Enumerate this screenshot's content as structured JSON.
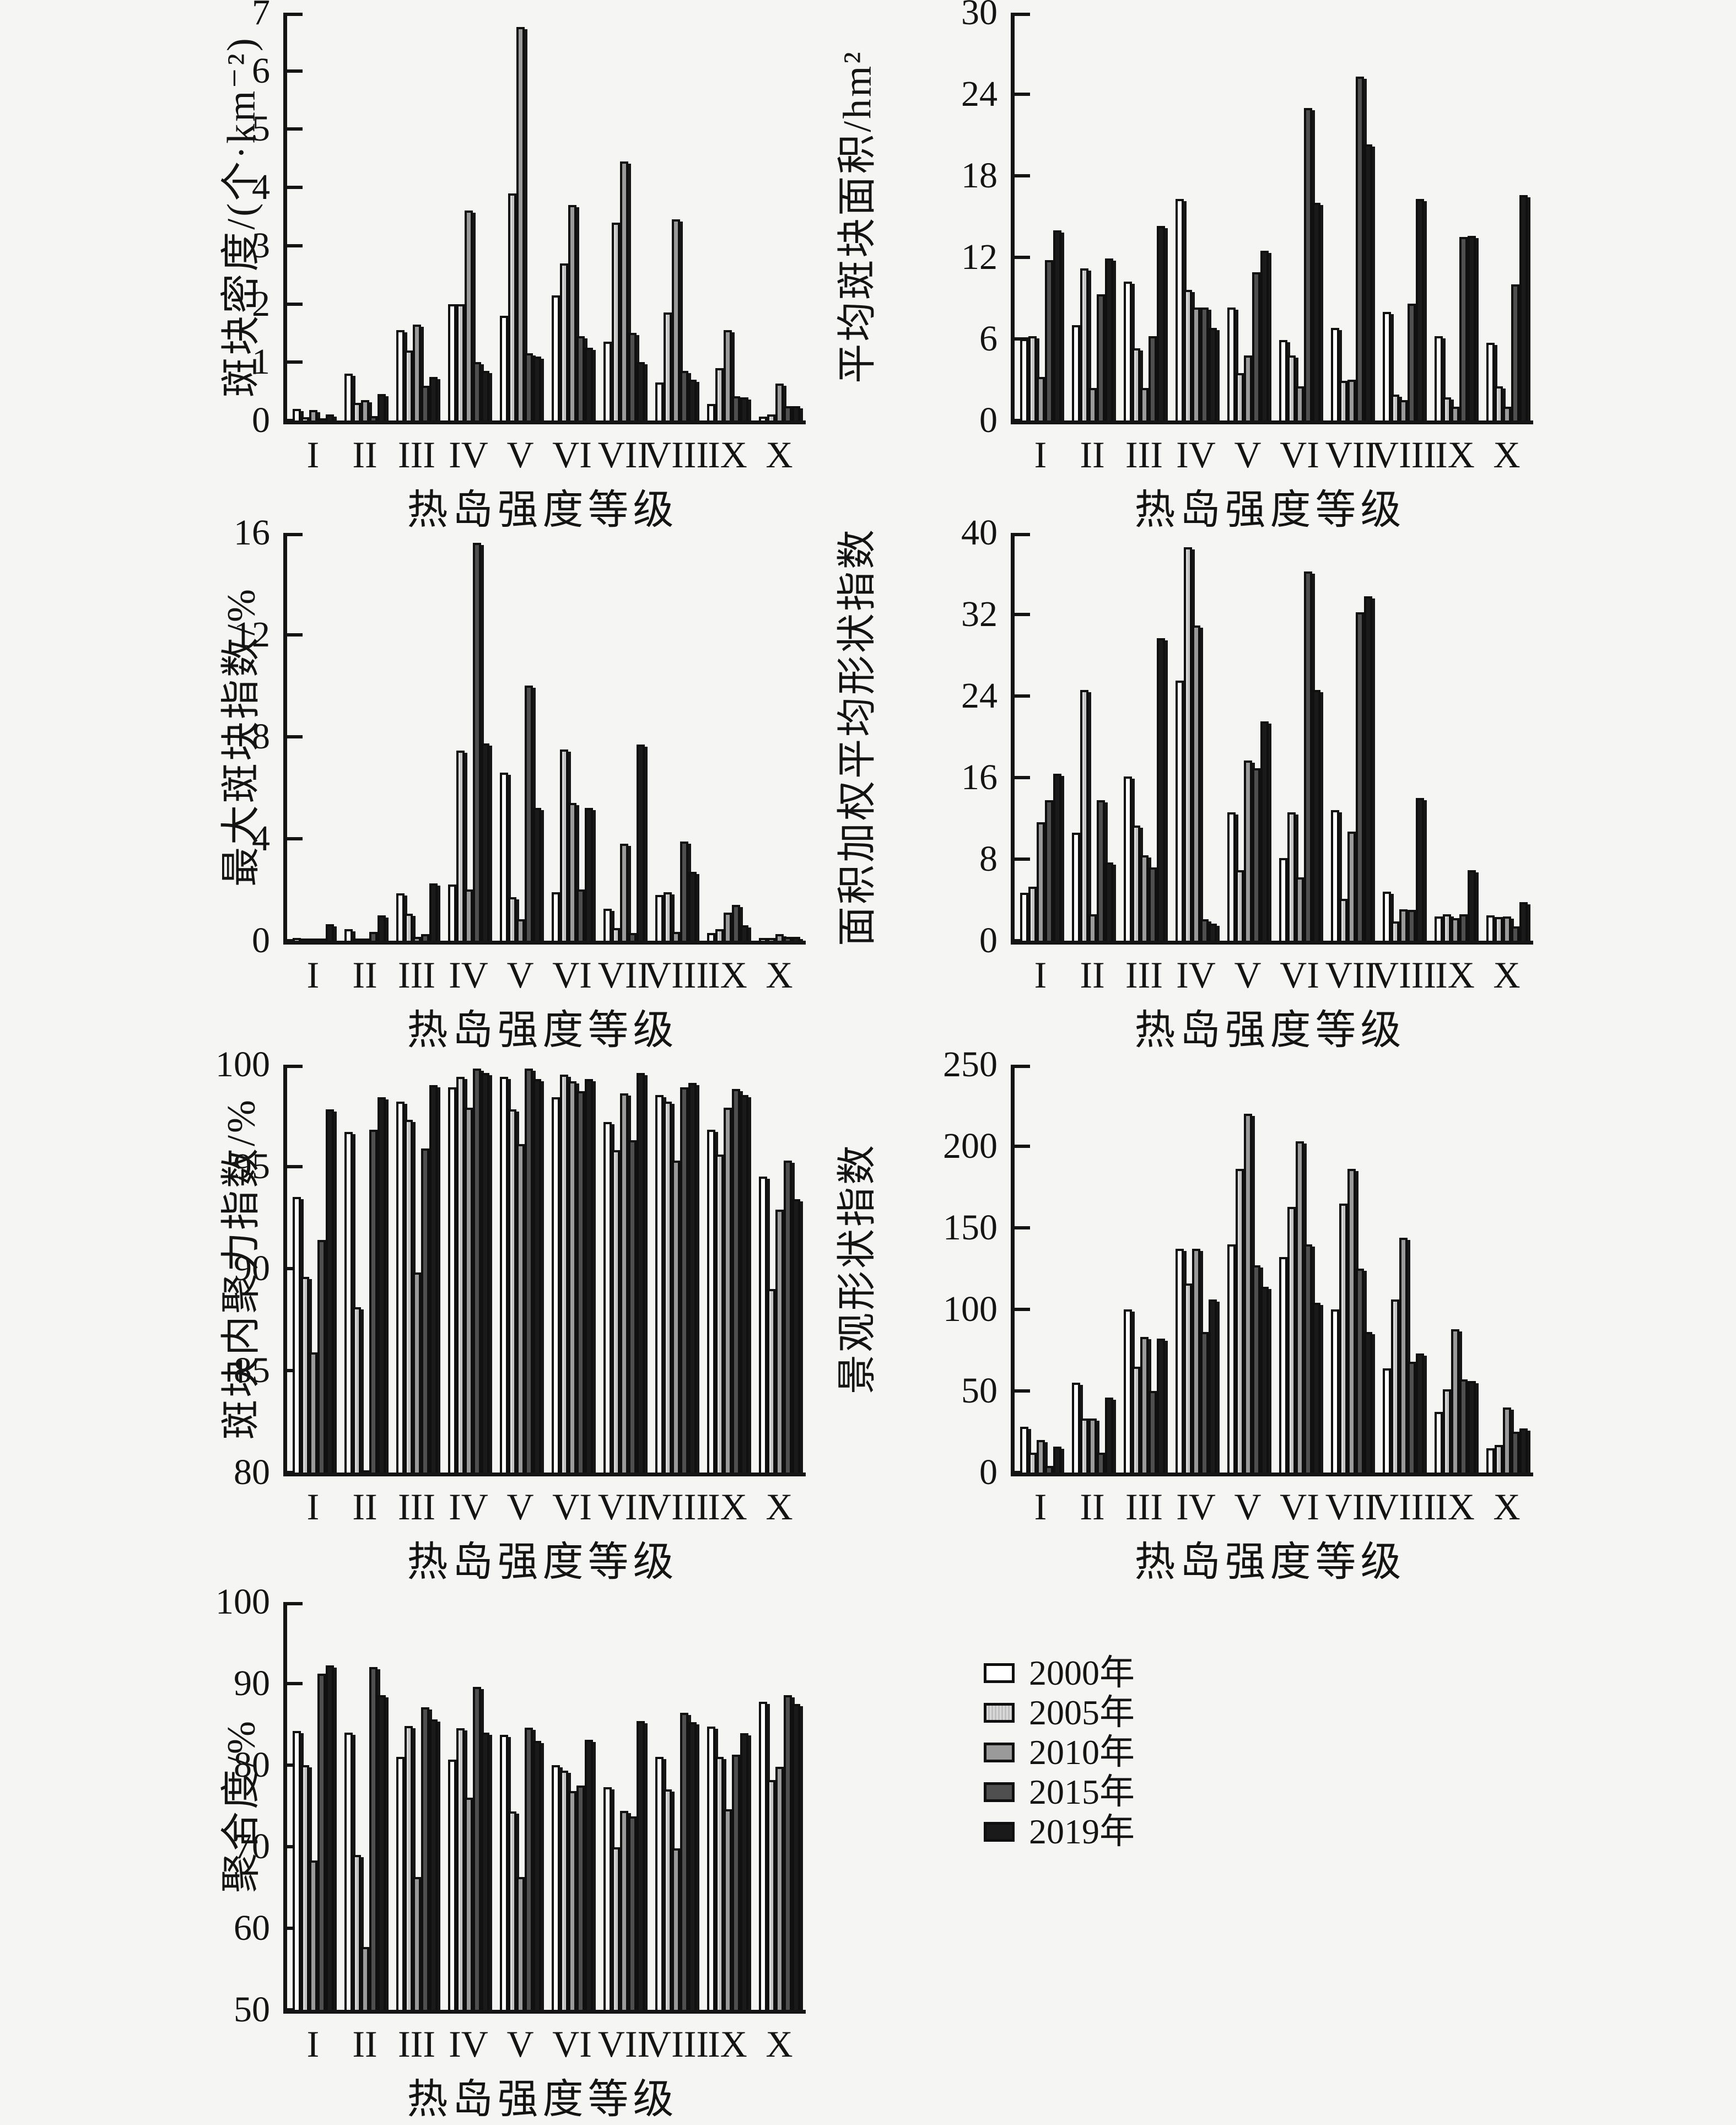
{
  "x_axis_title": "热岛强度等级",
  "categories": [
    "I",
    "II",
    "III",
    "IV",
    "V",
    "VI",
    "VII",
    "VIII",
    "IX",
    "X"
  ],
  "colors": {
    "axis": "#141414",
    "background": "#f5f5f3",
    "series_2000": "#ffffff",
    "series_2005": "#d9d9d9",
    "series_2010": "#9a9a9a",
    "series_2015": "#4f4f4f",
    "series_2019": "#1a1a1a"
  },
  "legend": {
    "items": [
      {
        "label": "2000年",
        "color": "#ffffff",
        "pattern": "solid"
      },
      {
        "label": "2005年",
        "color": "#d9d9d9",
        "pattern": "vertical-stripes"
      },
      {
        "label": "2010年",
        "color": "#9a9a9a",
        "pattern": "solid"
      },
      {
        "label": "2015年",
        "color": "#4f4f4f",
        "pattern": "solid"
      },
      {
        "label": "2019年",
        "color": "#1a1a1a",
        "pattern": "solid"
      }
    ]
  },
  "chart_data": [
    {
      "type": "bar",
      "ylabel": "斑块密度/(个·km⁻²)",
      "xlabel": "热岛强度等级",
      "ylim": [
        0,
        7
      ],
      "yticks": [
        0,
        1,
        2,
        3,
        4,
        5,
        6,
        7
      ],
      "grid": false,
      "categories": [
        "I",
        "II",
        "III",
        "IV",
        "V",
        "VI",
        "VII",
        "VIII",
        "IX",
        "X"
      ],
      "series": [
        {
          "name": "2000年",
          "values": [
            0.2,
            0.8,
            1.55,
            2.0,
            1.8,
            2.15,
            1.35,
            0.65,
            0.28,
            0.07
          ]
        },
        {
          "name": "2005年",
          "values": [
            0.06,
            0.3,
            1.2,
            2.0,
            3.9,
            2.7,
            3.4,
            1.85,
            0.9,
            0.1
          ]
        },
        {
          "name": "2010年",
          "values": [
            0.18,
            0.35,
            1.65,
            3.6,
            6.75,
            3.7,
            4.45,
            3.45,
            1.55,
            0.63
          ]
        },
        {
          "name": "2015年",
          "values": [
            0.03,
            0.08,
            0.6,
            1.0,
            1.15,
            1.45,
            1.5,
            0.85,
            0.42,
            0.25
          ]
        },
        {
          "name": "2019年",
          "values": [
            0.1,
            0.45,
            0.75,
            0.85,
            1.1,
            1.25,
            1.0,
            0.7,
            0.4,
            0.25
          ]
        }
      ]
    },
    {
      "type": "bar",
      "ylabel": "平均斑块面积/hm²",
      "xlabel": "热岛强度等级",
      "ylim": [
        0,
        30
      ],
      "yticks": [
        0,
        6,
        12,
        18,
        24,
        30
      ],
      "grid": false,
      "categories": [
        "I",
        "II",
        "III",
        "IV",
        "V",
        "VI",
        "VII",
        "VIII",
        "IX",
        "X"
      ],
      "series": [
        {
          "name": "2000年",
          "values": [
            6.0,
            7.0,
            10.2,
            16.3,
            8.3,
            5.9,
            6.8,
            8.0,
            6.2,
            5.7
          ]
        },
        {
          "name": "2005年",
          "values": [
            6.2,
            11.2,
            5.3,
            9.6,
            3.5,
            4.8,
            2.9,
            1.9,
            1.7,
            2.5
          ]
        },
        {
          "name": "2010年",
          "values": [
            3.2,
            2.4,
            2.4,
            8.3,
            4.8,
            2.5,
            3.0,
            1.5,
            1.0,
            1.0
          ]
        },
        {
          "name": "2015年",
          "values": [
            11.8,
            9.3,
            6.2,
            8.3,
            10.9,
            23.0,
            25.3,
            8.6,
            13.5,
            10.0
          ]
        },
        {
          "name": "2019年",
          "values": [
            14.0,
            11.9,
            14.3,
            6.8,
            12.5,
            16.0,
            20.3,
            16.3,
            13.6,
            16.6
          ]
        }
      ]
    },
    {
      "type": "bar",
      "ylabel": "最大斑块指数/%",
      "xlabel": "热岛强度等级",
      "ylim": [
        0,
        16
      ],
      "yticks": [
        0,
        4,
        8,
        12,
        16
      ],
      "grid": false,
      "categories": [
        "I",
        "II",
        "III",
        "IV",
        "V",
        "VI",
        "VII",
        "VIII",
        "IX",
        "X"
      ],
      "series": [
        {
          "name": "2000年",
          "values": [
            0.1,
            0.45,
            1.85,
            2.2,
            6.6,
            1.9,
            1.25,
            1.8,
            0.3,
            0.1
          ]
        },
        {
          "name": "2005年",
          "values": [
            0.05,
            0.08,
            1.05,
            7.45,
            1.7,
            7.5,
            0.5,
            1.9,
            0.45,
            0.1
          ]
        },
        {
          "name": "2010年",
          "values": [
            0.05,
            0.08,
            0.15,
            2.0,
            0.85,
            5.4,
            3.8,
            0.35,
            1.1,
            0.25
          ]
        },
        {
          "name": "2015年",
          "values": [
            0.05,
            0.35,
            0.25,
            15.6,
            10.0,
            2.0,
            0.3,
            3.9,
            1.4,
            0.15
          ]
        },
        {
          "name": "2019年",
          "values": [
            0.65,
            1.0,
            2.25,
            7.75,
            5.2,
            5.2,
            7.7,
            2.7,
            0.6,
            0.15
          ]
        }
      ]
    },
    {
      "type": "bar",
      "ylabel": "面积加权平均形状指数",
      "xlabel": "热岛强度等级",
      "ylim": [
        0,
        40
      ],
      "yticks": [
        0,
        8,
        16,
        24,
        32,
        40
      ],
      "grid": false,
      "categories": [
        "I",
        "II",
        "III",
        "IV",
        "V",
        "VI",
        "VII",
        "VIII",
        "IX",
        "X"
      ],
      "series": [
        {
          "name": "2000年",
          "values": [
            4.7,
            10.6,
            16.1,
            25.5,
            12.6,
            8.1,
            12.8,
            4.8,
            2.4,
            2.5
          ]
        },
        {
          "name": "2005年",
          "values": [
            5.3,
            24.6,
            11.3,
            38.6,
            6.9,
            12.6,
            4.1,
            1.9,
            2.6,
            2.3
          ]
        },
        {
          "name": "2010年",
          "values": [
            11.6,
            2.6,
            8.4,
            30.9,
            17.7,
            6.2,
            10.7,
            3.1,
            2.2,
            2.4
          ]
        },
        {
          "name": "2015年",
          "values": [
            13.8,
            13.8,
            7.2,
            2.1,
            16.9,
            36.2,
            32.2,
            3.0,
            2.6,
            1.4
          ]
        },
        {
          "name": "2019年",
          "values": [
            16.4,
            7.7,
            29.7,
            1.7,
            21.5,
            24.6,
            33.8,
            14.0,
            6.9,
            3.8
          ]
        }
      ]
    },
    {
      "type": "bar",
      "ylabel": "斑块内聚力指数/%",
      "xlabel": "热岛强度等级",
      "ylim": [
        80,
        100
      ],
      "yticks": [
        80,
        85,
        90,
        95,
        100
      ],
      "grid": false,
      "categories": [
        "I",
        "II",
        "III",
        "IV",
        "V",
        "VI",
        "VII",
        "VIII",
        "IX",
        "X"
      ],
      "series": [
        {
          "name": "2000年",
          "values": [
            93.5,
            96.7,
            98.2,
            98.9,
            99.4,
            98.4,
            97.2,
            98.5,
            96.8,
            94.5
          ]
        },
        {
          "name": "2005年",
          "values": [
            89.6,
            88.1,
            97.3,
            99.4,
            97.8,
            99.5,
            95.8,
            98.2,
            95.6,
            89.0
          ]
        },
        {
          "name": "2010年",
          "values": [
            85.9,
            80.1,
            89.8,
            97.9,
            96.1,
            99.2,
            98.6,
            95.3,
            97.9,
            92.9
          ]
        },
        {
          "name": "2015年",
          "values": [
            91.4,
            96.8,
            95.9,
            99.8,
            99.8,
            98.7,
            96.3,
            98.9,
            98.8,
            95.3
          ]
        },
        {
          "name": "2019年",
          "values": [
            97.8,
            98.4,
            99.0,
            99.6,
            99.3,
            99.3,
            99.6,
            99.1,
            98.5,
            93.4
          ]
        }
      ]
    },
    {
      "type": "bar",
      "ylabel": "景观形状指数",
      "xlabel": "热岛强度等级",
      "ylim": [
        0,
        250
      ],
      "yticks": [
        0,
        50,
        100,
        150,
        200,
        250
      ],
      "grid": false,
      "categories": [
        "I",
        "II",
        "III",
        "IV",
        "V",
        "VI",
        "VII",
        "VIII",
        "IX",
        "X"
      ],
      "series": [
        {
          "name": "2000年",
          "values": [
            28,
            55,
            100,
            137,
            140,
            132,
            100,
            64,
            37,
            15
          ]
        },
        {
          "name": "2005年",
          "values": [
            12,
            33,
            65,
            116,
            186,
            163,
            165,
            106,
            51,
            17
          ]
        },
        {
          "name": "2010年",
          "values": [
            20,
            33,
            83,
            137,
            220,
            203,
            186,
            144,
            88,
            40
          ]
        },
        {
          "name": "2015年",
          "values": [
            4,
            12,
            50,
            86,
            127,
            140,
            125,
            68,
            57,
            25
          ]
        },
        {
          "name": "2019年",
          "values": [
            16,
            46,
            82,
            106,
            114,
            104,
            86,
            73,
            56,
            27
          ]
        }
      ]
    },
    {
      "type": "bar",
      "ylabel": "聚合度/%",
      "xlabel": "热岛强度等级",
      "ylim": [
        50,
        100
      ],
      "yticks": [
        50,
        60,
        70,
        80,
        90,
        100
      ],
      "grid": false,
      "categories": [
        "I",
        "II",
        "III",
        "IV",
        "V",
        "VI",
        "VII",
        "VIII",
        "IX",
        "X"
      ],
      "series": [
        {
          "name": "2000年",
          "values": [
            84.2,
            84.0,
            81.0,
            80.7,
            83.7,
            80.0,
            77.3,
            81.0,
            84.7,
            87.8
          ]
        },
        {
          "name": "2005年",
          "values": [
            80.0,
            69.0,
            84.8,
            84.5,
            74.3,
            79.3,
            69.9,
            77.0,
            81.0,
            78.2
          ]
        },
        {
          "name": "2010年",
          "values": [
            68.3,
            57.7,
            66.3,
            76.0,
            66.3,
            76.8,
            74.4,
            69.8,
            74.6,
            79.8
          ]
        },
        {
          "name": "2015年",
          "values": [
            91.2,
            92.0,
            87.1,
            89.6,
            84.6,
            77.5,
            73.7,
            86.4,
            81.3,
            88.6
          ]
        },
        {
          "name": "2019年",
          "values": [
            92.2,
            88.6,
            85.6,
            84.0,
            83.0,
            83.1,
            85.4,
            85.3,
            83.9,
            87.5
          ]
        }
      ]
    }
  ]
}
